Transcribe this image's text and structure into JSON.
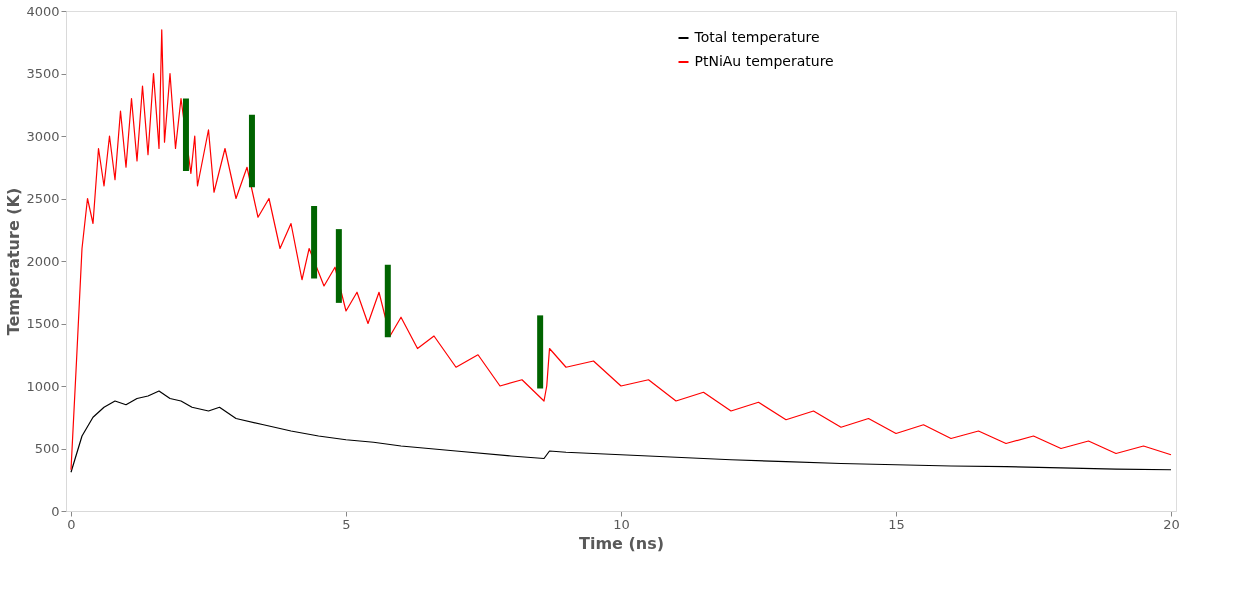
{
  "chart_data": {
    "type": "line",
    "xlabel": "Time (ns)",
    "ylabel": "Temperature (K)",
    "xlim": [
      0,
      20
    ],
    "xticks": [
      0,
      5,
      10,
      15,
      20
    ],
    "ylim": [
      0,
      4000
    ],
    "yticks": [
      0,
      500,
      1000,
      1500,
      2000,
      2500,
      3000,
      3500,
      4000
    ],
    "grid": false,
    "legend": "top right",
    "series": [
      {
        "name": "Total temperature",
        "color": "#000000",
        "x": [
          0,
          0.2,
          0.4,
          0.6,
          0.8,
          1.0,
          1.2,
          1.4,
          1.6,
          1.8,
          2.0,
          2.2,
          2.5,
          2.7,
          3.0,
          3.5,
          4.0,
          4.5,
          5.0,
          5.5,
          6.0,
          7.0,
          8.0,
          8.6,
          8.7,
          9.0,
          10,
          11,
          12,
          13,
          14,
          15,
          16,
          17,
          18,
          19,
          20
        ],
        "values": [
          310,
          600,
          750,
          830,
          880,
          850,
          900,
          920,
          960,
          900,
          880,
          830,
          800,
          830,
          740,
          690,
          640,
          600,
          570,
          550,
          520,
          480,
          440,
          420,
          480,
          470,
          450,
          430,
          410,
          395,
          380,
          370,
          360,
          355,
          345,
          335,
          330
        ]
      },
      {
        "name": "PtNiAu temperature",
        "color": "#ff0000",
        "x": [
          0,
          0.1,
          0.2,
          0.3,
          0.4,
          0.5,
          0.6,
          0.7,
          0.8,
          0.9,
          1.0,
          1.1,
          1.2,
          1.3,
          1.4,
          1.5,
          1.6,
          1.65,
          1.7,
          1.8,
          1.9,
          2.0,
          2.18,
          2.25,
          2.3,
          2.5,
          2.6,
          2.8,
          3.0,
          3.2,
          3.4,
          3.6,
          3.8,
          4.0,
          4.2,
          4.33,
          4.6,
          4.8,
          5.0,
          5.2,
          5.4,
          5.6,
          5.8,
          6.0,
          6.3,
          6.6,
          7.0,
          7.4,
          7.8,
          8.2,
          8.6,
          8.65,
          8.7,
          9.0,
          9.5,
          10.0,
          10.5,
          11.0,
          11.5,
          12.0,
          12.5,
          13.0,
          13.5,
          14.0,
          14.5,
          15.0,
          15.5,
          16.0,
          16.5,
          17.0,
          17.5,
          18.0,
          18.5,
          19.0,
          19.5,
          20.0
        ],
        "values": [
          330,
          1200,
          2100,
          2500,
          2300,
          2900,
          2600,
          3000,
          2650,
          3200,
          2750,
          3300,
          2800,
          3400,
          2850,
          3500,
          2900,
          3850,
          2950,
          3500,
          2900,
          3300,
          2700,
          3000,
          2600,
          3050,
          2550,
          2900,
          2500,
          2750,
          2350,
          2500,
          2100,
          2300,
          1850,
          2100,
          1800,
          1950,
          1600,
          1750,
          1500,
          1750,
          1400,
          1550,
          1300,
          1400,
          1150,
          1250,
          1000,
          1050,
          880,
          1000,
          1300,
          1150,
          1200,
          1000,
          1050,
          880,
          950,
          800,
          870,
          730,
          800,
          670,
          740,
          620,
          690,
          580,
          640,
          540,
          600,
          500,
          560,
          460,
          520,
          450
        ]
      },
      {
        "type": "bar",
        "color": "#006400",
        "x": [
          2.09,
          3.29,
          4.42,
          4.87,
          5.76,
          8.53
        ],
        "base": [
          2720,
          2590,
          1860,
          1665,
          1390,
          980
        ],
        "values": [
          580,
          580,
          580,
          590,
          580,
          585
        ]
      }
    ]
  }
}
